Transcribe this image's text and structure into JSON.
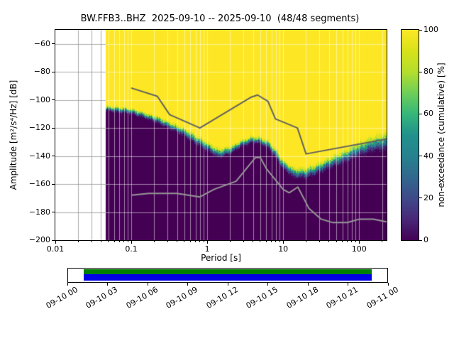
{
  "chart_data": {
    "type": "heatmap",
    "title": "BW.FFB3..BHZ  2025-09-10 -- 2025-09-10  (48/48 segments)",
    "station_id": "BW.FFB3..BHZ",
    "date_range": "2025-09-10 -- 2025-09-10",
    "segments": "48/48 segments",
    "xlabel": "Period [s]",
    "ylabel": "Amplitude [m²/s⁴/Hz] [dB]",
    "x_axis": {
      "scale": "log",
      "range": [
        0.01,
        230
      ],
      "tick_values": [
        0.01,
        0.1,
        1,
        10,
        100
      ],
      "tick_labels": [
        "0.01",
        "0.1",
        "1",
        "10",
        "100"
      ]
    },
    "y_axis": {
      "range": [
        -200,
        -50
      ],
      "tick_values": [
        -60,
        -80,
        -100,
        -120,
        -140,
        -160,
        -180,
        -200
      ],
      "tick_labels": [
        "−60",
        "−80",
        "−100",
        "−120",
        "−140",
        "−160",
        "−180",
        "−200"
      ]
    },
    "colorbar": {
      "label": "non-exceedance (cumulative) [%]",
      "range": [
        0,
        100
      ],
      "tick_values": [
        0,
        20,
        40,
        60,
        80,
        100
      ],
      "tick_labels": [
        "0",
        "20",
        "40",
        "60",
        "80",
        "100"
      ],
      "colormap": "viridis",
      "stops": [
        [
          0.0,
          "#440154"
        ],
        [
          0.1,
          "#482878"
        ],
        [
          0.2,
          "#3e4a89"
        ],
        [
          0.3,
          "#31688e"
        ],
        [
          0.4,
          "#26828e"
        ],
        [
          0.5,
          "#21918c"
        ],
        [
          0.6,
          "#35b779"
        ],
        [
          0.7,
          "#6ece58"
        ],
        [
          0.8,
          "#b4de2c"
        ],
        [
          0.9,
          "#d8e219"
        ],
        [
          1.0,
          "#fde725"
        ]
      ]
    },
    "data_start_period": 0.046,
    "cumulative_boundary": {
      "description": "Period vs dB level of the 0-to-100% non-exceedance transition band",
      "periods": [
        0.046,
        0.07,
        0.1,
        0.15,
        0.22,
        0.32,
        0.5,
        0.7,
        1.0,
        1.4,
        2.0,
        2.8,
        4.0,
        5.0,
        6.5,
        8.0,
        10.0,
        14.0,
        20.0,
        28.0,
        40.0,
        60.0,
        90.0,
        140.0,
        230.0
      ],
      "median_db": [
        -106,
        -107,
        -108,
        -111,
        -114,
        -118,
        -123,
        -128,
        -133,
        -138,
        -136,
        -131,
        -128,
        -129,
        -132,
        -138,
        -146,
        -152,
        -152,
        -149,
        -145,
        -141,
        -136,
        -132,
        -129
      ],
      "band_db": [
        5,
        5,
        5,
        5,
        6,
        6,
        7,
        8,
        8,
        8,
        7,
        6,
        6,
        6,
        7,
        8,
        8,
        9,
        9,
        9,
        10,
        11,
        12,
        13,
        15
      ]
    },
    "noise_models": {
      "nhnm": {
        "name": "Peterson high noise model",
        "color": "#616161",
        "points": [
          [
            0.1,
            -91.5
          ],
          [
            0.22,
            -97.4
          ],
          [
            0.32,
            -110.5
          ],
          [
            0.8,
            -120.0
          ],
          [
            3.8,
            -98.0
          ],
          [
            4.6,
            -96.5
          ],
          [
            6.3,
            -101.0
          ],
          [
            7.9,
            -113.5
          ],
          [
            15.4,
            -120.0
          ],
          [
            20.0,
            -138.5
          ],
          [
            230.0,
            -127.9
          ]
        ]
      },
      "nlnm": {
        "name": "Peterson low noise model",
        "color": "#979797",
        "points": [
          [
            0.1,
            -168.0
          ],
          [
            0.17,
            -166.7
          ],
          [
            0.4,
            -166.7
          ],
          [
            0.8,
            -169.2
          ],
          [
            1.24,
            -163.7
          ],
          [
            2.4,
            -158.0
          ],
          [
            4.3,
            -141.1
          ],
          [
            5.0,
            -141.1
          ],
          [
            6.0,
            -149.0
          ],
          [
            10.0,
            -163.8
          ],
          [
            12.0,
            -166.2
          ],
          [
            15.6,
            -162.1
          ],
          [
            21.9,
            -177.5
          ],
          [
            31.6,
            -185.0
          ],
          [
            45.0,
            -187.5
          ],
          [
            70.0,
            -187.5
          ],
          [
            101.0,
            -185.0
          ],
          [
            154.0,
            -185.0
          ],
          [
            230.0,
            -187.0
          ]
        ]
      }
    },
    "timeline": {
      "tick_labels": [
        "09-10 00",
        "09-10 03",
        "09-10 06",
        "09-10 09",
        "09-10 12",
        "09-10 15",
        "09-10 18",
        "09-10 21",
        "09-11 00"
      ],
      "coverage_color_top": "#007f00",
      "coverage_color_bottom": "#0000e6",
      "coverage_start_frac": 0.049,
      "coverage_end_frac": 0.951
    }
  }
}
